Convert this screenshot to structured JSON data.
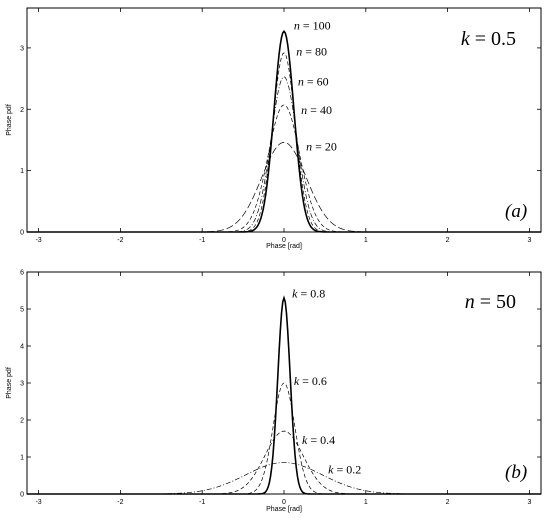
{
  "chart_data": [
    {
      "type": "line",
      "panel_tag": "(a)",
      "parameter_prefix": "k",
      "parameter_value": "0.5",
      "xlabel": "Phase [rad]",
      "ylabel": "Phase pdf",
      "xlim": [
        -3.14159,
        3.14159
      ],
      "ylim": [
        0,
        3.65
      ],
      "xticks": [
        -3,
        -2,
        -1,
        0,
        1,
        2,
        3
      ],
      "yticks": [
        0,
        1,
        2,
        3
      ],
      "series": [
        {
          "name": "n=100",
          "label_prefix": "n",
          "label_value": "100",
          "peak": 3.27,
          "sigma": 0.122,
          "style": "solid",
          "label_x": 0.12,
          "label_y": 3.3
        },
        {
          "name": "n=80",
          "label_prefix": "n",
          "label_value": "80",
          "peak": 2.92,
          "sigma": 0.137,
          "style": "dashed",
          "label_x": 0.15,
          "label_y": 2.88
        },
        {
          "name": "n=60",
          "label_prefix": "n",
          "label_value": "60",
          "peak": 2.53,
          "sigma": 0.158,
          "style": "dashdot",
          "label_x": 0.17,
          "label_y": 2.39
        },
        {
          "name": "n=40",
          "label_prefix": "n",
          "label_value": "40",
          "peak": 2.07,
          "sigma": 0.193,
          "style": "dashed",
          "label_x": 0.21,
          "label_y": 1.92
        },
        {
          "name": "n=20",
          "label_prefix": "n",
          "label_value": "20",
          "peak": 1.46,
          "sigma": 0.273,
          "style": "longdash",
          "label_x": 0.27,
          "label_y": 1.33
        }
      ]
    },
    {
      "type": "line",
      "panel_tag": "(b)",
      "parameter_prefix": "n",
      "parameter_value": "50",
      "xlabel": "Phase [rad]",
      "ylabel": "Phase pdf",
      "xlim": [
        -3.14159,
        3.14159
      ],
      "ylim": [
        0,
        6.0
      ],
      "xticks": [
        -3,
        -2,
        -1,
        0,
        1,
        2,
        3
      ],
      "yticks": [
        0,
        1,
        2,
        3,
        4,
        5,
        6
      ],
      "series": [
        {
          "name": "k=0.8",
          "label_prefix": "k",
          "label_value": "0.8",
          "peak": 5.3,
          "sigma": 0.075,
          "style": "solid",
          "label_x": 0.1,
          "label_y": 5.31
        },
        {
          "name": "k=0.6",
          "label_prefix": "k",
          "label_value": "0.6",
          "peak": 3.0,
          "sigma": 0.133,
          "style": "dashed",
          "label_x": 0.12,
          "label_y": 2.95
        },
        {
          "name": "k=0.4",
          "label_prefix": "k",
          "label_value": "0.4",
          "peak": 1.7,
          "sigma": 0.235,
          "style": "dashed",
          "label_x": 0.22,
          "label_y": 1.35
        },
        {
          "name": "k=0.2",
          "label_prefix": "k",
          "label_value": "0.2",
          "peak": 0.85,
          "sigma": 0.47,
          "style": "dashdot",
          "label_x": 0.54,
          "label_y": 0.55
        }
      ]
    }
  ]
}
